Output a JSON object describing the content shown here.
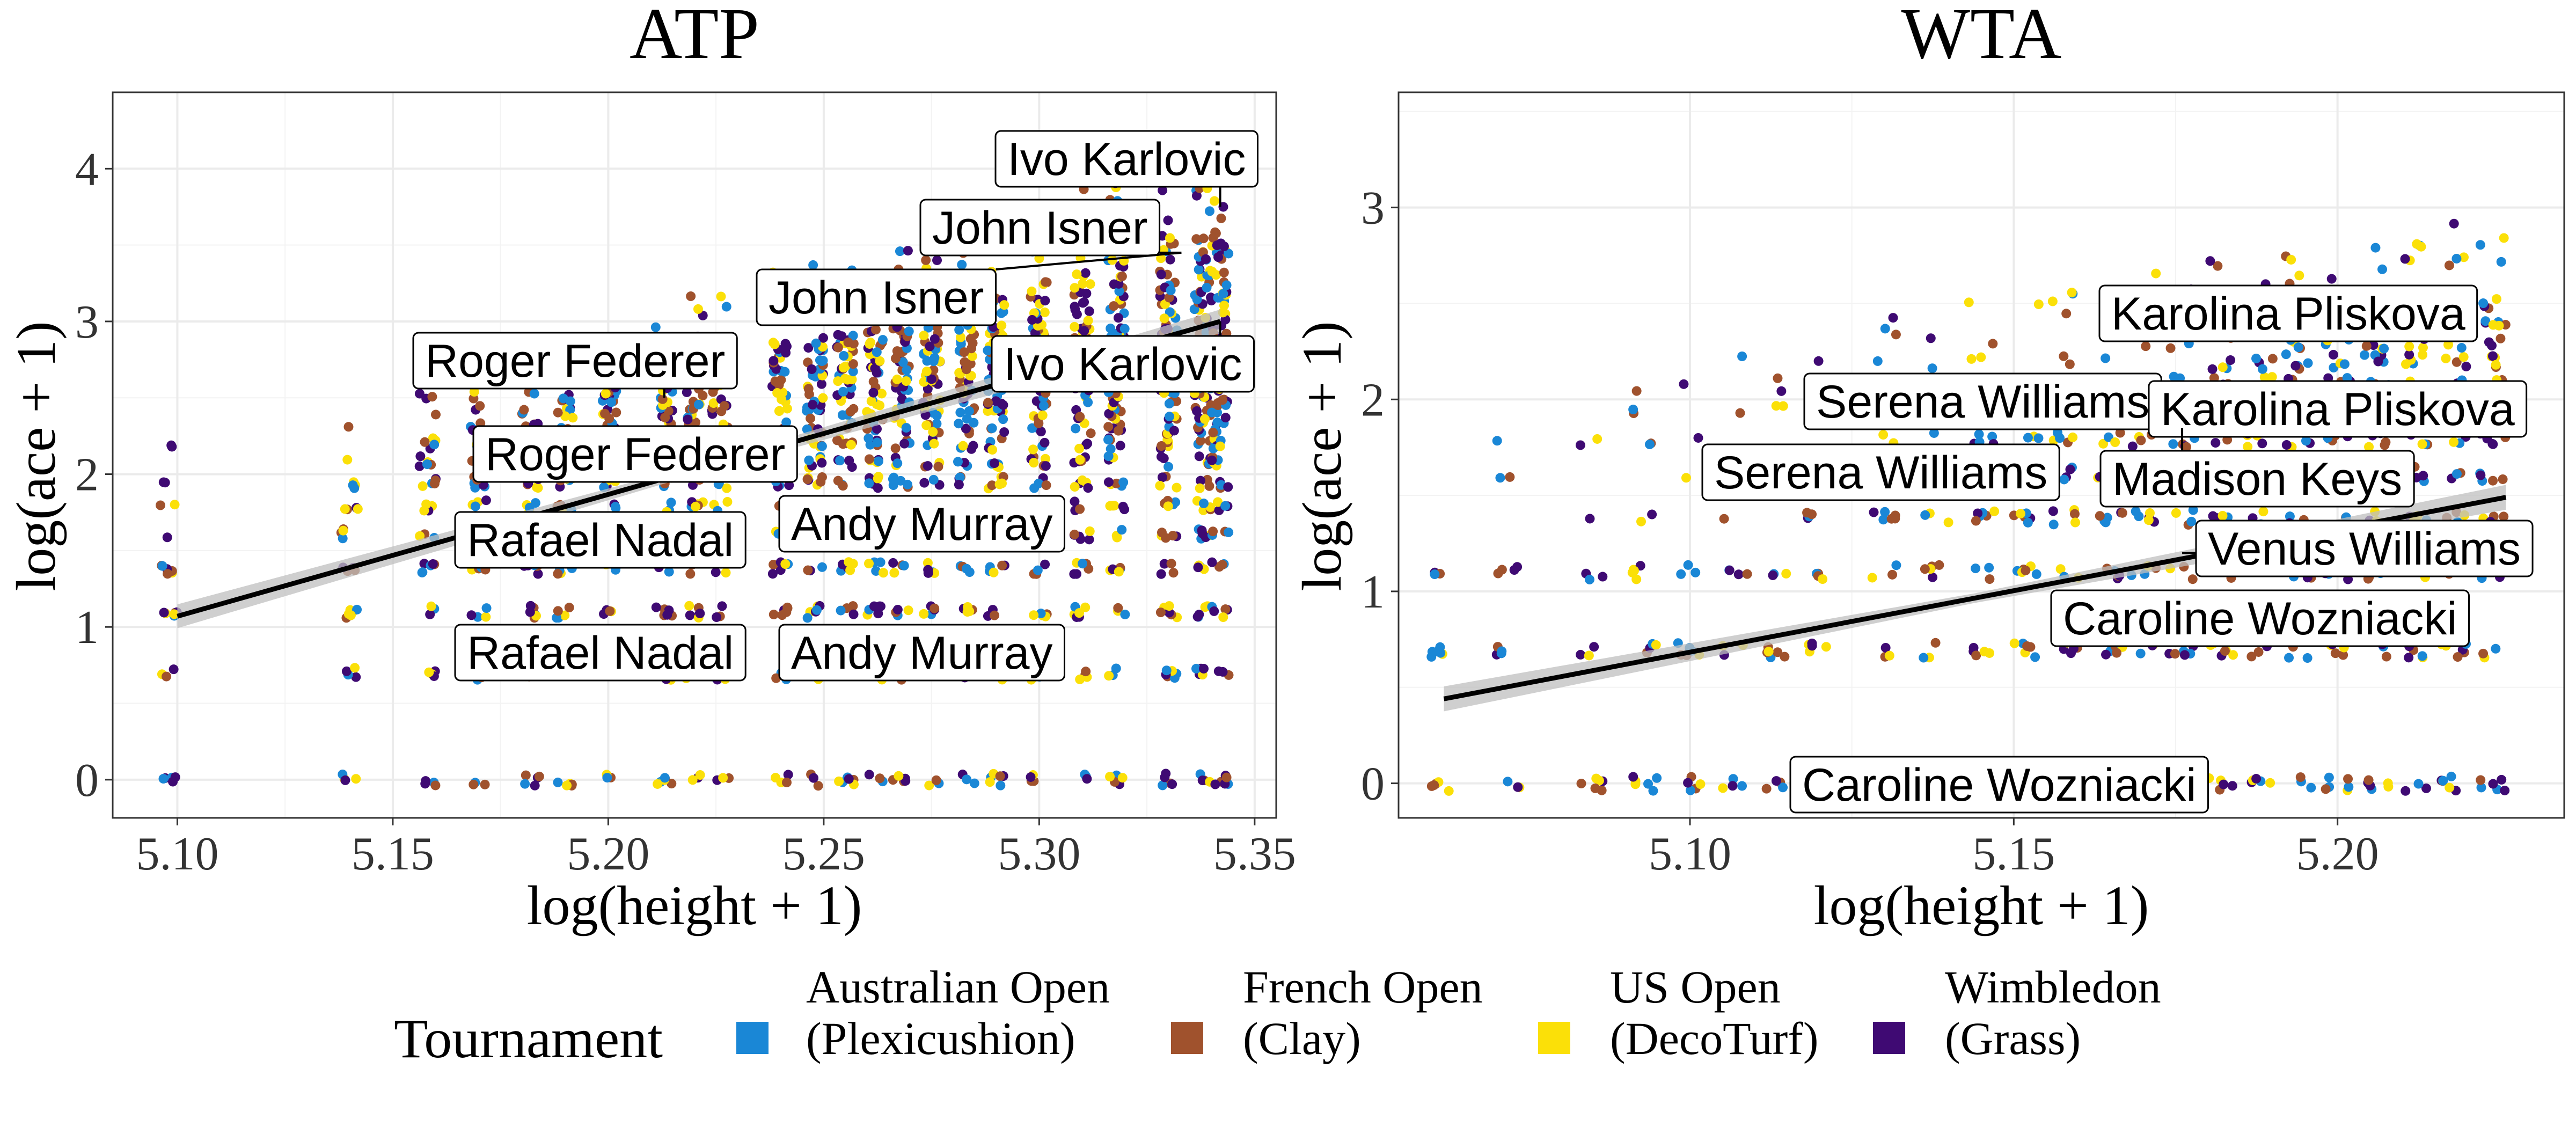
{
  "chart_data": [
    {
      "type": "scatter",
      "title": "ATP",
      "xlabel": "log(height + 1)",
      "ylabel": "log(ace + 1)",
      "xlim": [
        5.085,
        5.355
      ],
      "ylim": [
        -0.25,
        4.5
      ],
      "xticks": [
        5.1,
        5.15,
        5.2,
        5.25,
        5.3,
        5.35
      ],
      "xtick_labels": [
        "5.10",
        "5.15",
        "5.20",
        "5.25",
        "5.30",
        "5.35"
      ],
      "yticks": [
        0,
        1,
        2,
        3,
        4
      ],
      "ytick_labels": [
        "0",
        "1",
        "2",
        "3",
        "4"
      ],
      "grid": true,
      "heights": [
        5.098,
        5.14,
        5.158,
        5.17,
        5.182,
        5.19,
        5.2,
        5.213,
        5.22,
        5.226,
        5.24,
        5.248,
        5.255,
        5.262,
        5.268,
        5.275,
        5.283,
        5.29,
        5.3,
        5.31,
        5.318,
        5.33,
        5.338,
        5.342
      ],
      "ace_levels": [
        0,
        0.693,
        1.099,
        1.386,
        1.609,
        1.792,
        1.946,
        2.079,
        2.197,
        2.303,
        2.398,
        2.485,
        2.565,
        2.639,
        2.708,
        2.773,
        2.833,
        2.89,
        2.944,
        3.045,
        3.135,
        3.219,
        3.332,
        3.434,
        3.526,
        3.611,
        3.689,
        3.761,
        3.829,
        3.892,
        3.951
      ],
      "fit_line": {
        "x": [
          5.1,
          5.342
        ],
        "y": [
          1.07,
          3.0
        ],
        "se": 0.06
      },
      "labels": [
        {
          "text": "Ivo Karlovic",
          "x": 5.342,
          "y": 3.75
        },
        {
          "text": "John Isner",
          "x": 5.333,
          "y": 3.45
        },
        {
          "text": "John Isner",
          "x": 5.333,
          "y": 3.45
        },
        {
          "text": "Roger Federer",
          "x": 5.213,
          "y": 2.5
        },
        {
          "text": "Ivo Karlovic",
          "x": 5.342,
          "y": 3.0
        },
        {
          "text": "Roger Federer",
          "x": 5.213,
          "y": 2.1
        },
        {
          "text": "Rafael Nadal",
          "x": 5.226,
          "y": 1.6
        },
        {
          "text": "Andy Murray",
          "x": 5.268,
          "y": 1.65
        },
        {
          "text": "Rafael Nadal",
          "x": 5.226,
          "y": 0.8
        },
        {
          "text": "Andy Murray",
          "x": 5.268,
          "y": 0.8
        }
      ]
    },
    {
      "type": "scatter",
      "title": "WTA",
      "xlabel": "log(height + 1)",
      "ylabel": "log(ace + 1)",
      "xlim": [
        5.055,
        5.235
      ],
      "ylim": [
        -0.18,
        3.6
      ],
      "xticks": [
        5.1,
        5.15,
        5.2
      ],
      "xtick_labels": [
        "5.10",
        "5.15",
        "5.20"
      ],
      "yticks": [
        0,
        1,
        2,
        3
      ],
      "ytick_labels": [
        "0",
        "1",
        "2",
        "3"
      ],
      "grid": true,
      "heights": [
        5.062,
        5.072,
        5.085,
        5.093,
        5.1,
        5.107,
        5.113,
        5.12,
        5.13,
        5.138,
        5.145,
        5.152,
        5.158,
        5.165,
        5.17,
        5.176,
        5.182,
        5.188,
        5.194,
        5.2,
        5.206,
        5.212,
        5.218,
        5.224
      ],
      "ace_levels": [
        0,
        0.693,
        1.099,
        1.386,
        1.609,
        1.792,
        1.946,
        2.079,
        2.197,
        2.303,
        2.398,
        2.485,
        2.565,
        2.639,
        2.708,
        2.773,
        2.833,
        2.89,
        2.944,
        3.01
      ],
      "fit_line": {
        "x": [
          5.062,
          5.226
        ],
        "y": [
          0.44,
          1.49
        ],
        "se": 0.05
      },
      "labels": [
        {
          "text": "Karolina Pliskova",
          "x": 5.2,
          "y": 2.45
        },
        {
          "text": "Serena Williams",
          "x": 5.152,
          "y": 1.9
        },
        {
          "text": "Karolina Pliskova",
          "x": 5.2,
          "y": 2.0
        },
        {
          "text": "Serena Williams",
          "x": 5.152,
          "y": 1.62
        },
        {
          "text": "Madison Keys",
          "x": 5.176,
          "y": 1.85
        },
        {
          "text": "Venus Williams",
          "x": 5.176,
          "y": 1.2
        },
        {
          "text": "Caroline Wozniacki",
          "x": 5.176,
          "y": 0.85
        },
        {
          "text": "Caroline Wozniacki",
          "x": 5.145,
          "y": 0.0
        }
      ]
    }
  ],
  "legend": {
    "title": "Tournament",
    "placement": "bottom",
    "items": [
      {
        "line1": "Australian Open",
        "line2": "(Plexicushion)",
        "color": "#1a87d6"
      },
      {
        "line1": "French Open",
        "line2": "(Clay)",
        "color": "#a0522d"
      },
      {
        "line1": "US Open",
        "line2": "(DecoTurf)",
        "color": "#fbe008"
      },
      {
        "line1": "Wimbledon",
        "line2": "(Grass)",
        "color": "#3f0a73"
      }
    ]
  }
}
